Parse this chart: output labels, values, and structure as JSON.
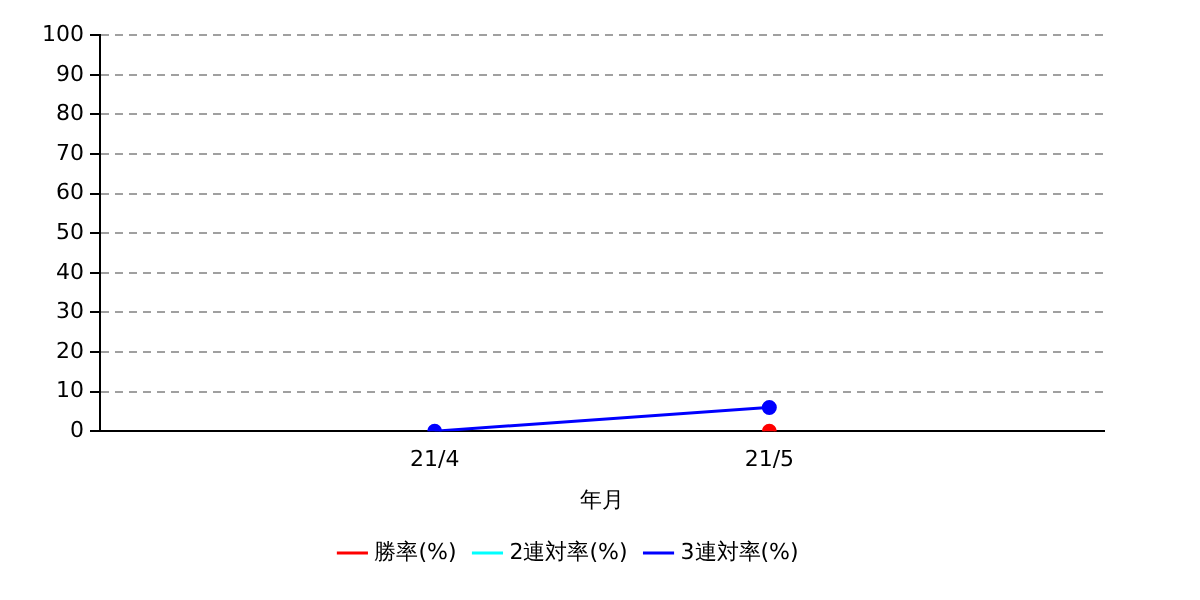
{
  "chart_data": {
    "type": "line",
    "xlabel": "年月",
    "categories": [
      "21/4",
      "21/5"
    ],
    "series": [
      {
        "name": "勝率(%)",
        "color": "#ff0000",
        "values": [
          null,
          0
        ]
      },
      {
        "name": "2連対率(%)",
        "color": "#00ffff",
        "values": [
          null,
          null
        ]
      },
      {
        "name": "3連対率(%)",
        "color": "#0000ff",
        "values": [
          0,
          6
        ]
      }
    ],
    "ylim": [
      0,
      100
    ],
    "yticks": [
      0,
      10,
      20,
      30,
      40,
      50,
      60,
      70,
      80,
      90,
      100
    ],
    "grid": "y",
    "legend": "bottom",
    "marker": "circle",
    "line_style": "solid"
  }
}
